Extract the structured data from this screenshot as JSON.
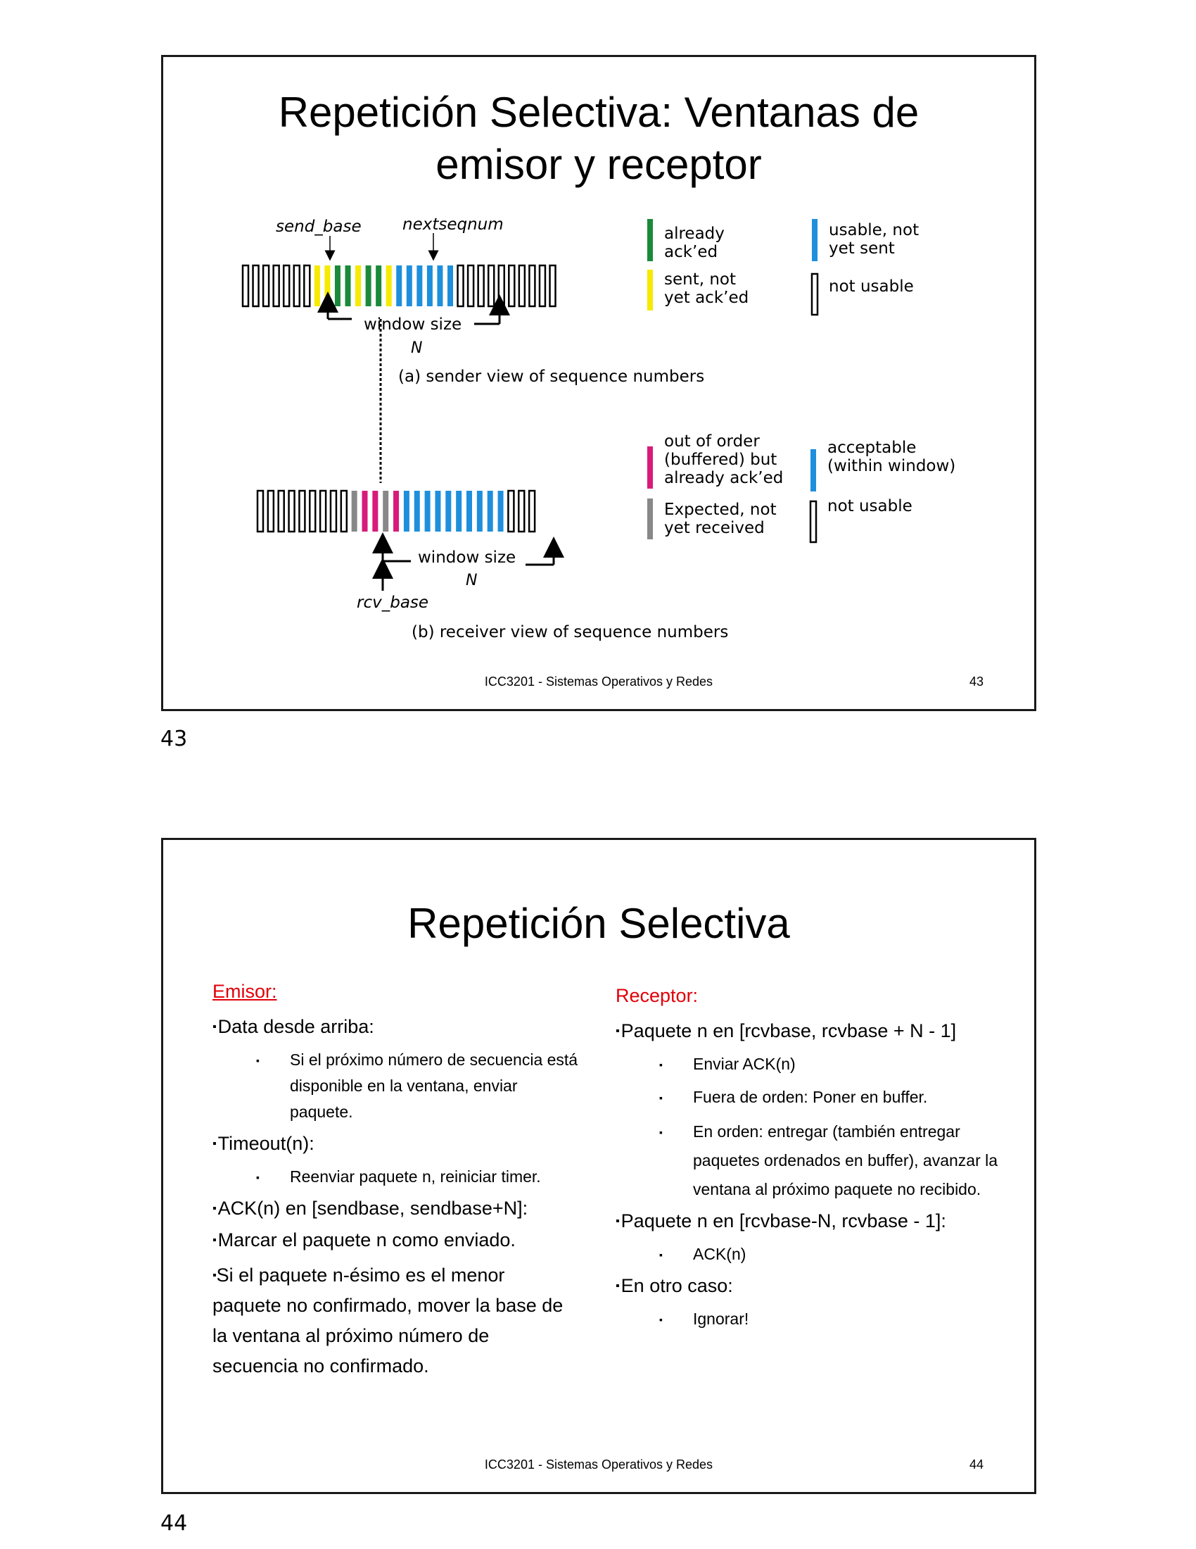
{
  "slide43": {
    "title_line1": "Repetición Selectiva: Ventanas de",
    "title_line2": "emisor y receptor",
    "sender": {
      "send_base": "send_base",
      "nextseqnum": "nextseqnum",
      "window_size": "window size",
      "n": "N",
      "caption": "(a) sender view of sequence numbers",
      "legend": [
        {
          "color": "#1a8a3a",
          "line1": "already",
          "line2": "ack’ed"
        },
        {
          "color": "#f5ea00",
          "line1": "sent, not",
          "line2": "yet ack’ed"
        },
        {
          "color": "#1e8fdc",
          "line1": "usable, not",
          "line2": "yet sent"
        },
        {
          "color": "#ffffff",
          "line1": "not usable",
          "line2": ""
        }
      ],
      "boxes": [
        "none",
        "none",
        "none",
        "none",
        "none",
        "none",
        "none",
        "yellow",
        "yellow",
        "green",
        "green",
        "yellow",
        "green",
        "green",
        "yellow",
        "blue",
        "blue",
        "blue",
        "blue",
        "blue",
        "blue",
        "none",
        "none",
        "none",
        "none",
        "none",
        "none",
        "none",
        "none",
        "none",
        "none"
      ]
    },
    "receiver": {
      "window_size": "window size",
      "n": "N",
      "rcv_base": "rcv_base",
      "caption": "(b) receiver view of sequence numbers",
      "legend": [
        {
          "color": "#d81b7a",
          "line1": "out of order",
          "line2": "(buffered) but",
          "line3": "already ack’ed"
        },
        {
          "color": "#888888",
          "line1": "Expected,  not",
          "line2": "yet received"
        },
        {
          "color": "#1e8fdc",
          "line1": "acceptable",
          "line2": "(within window)"
        },
        {
          "color": "#ffffff",
          "line1": "not usable"
        }
      ],
      "boxes": [
        "none",
        "none",
        "none",
        "none",
        "none",
        "none",
        "none",
        "none",
        "none",
        "gray",
        "pink",
        "pink",
        "gray",
        "pink",
        "blue",
        "blue",
        "blue",
        "blue",
        "blue",
        "blue",
        "blue",
        "blue",
        "blue",
        "blue",
        "none",
        "none",
        "none"
      ]
    },
    "footer": "ICC3201 - Sistemas Operativos y Redes",
    "number": "43",
    "page_number": "43"
  },
  "slide44": {
    "title": "Repetición Selectiva",
    "emisor": {
      "head": "Emisor:",
      "b1": "Data desde arriba:",
      "b1a": "Si el próximo número de secuencia está disponible en la ventana, enviar paquete.",
      "b2": "Timeout(n):",
      "b2a": "Reenviar paquete n, reiniciar timer.",
      "b3": "ACK(n) en [sendbase, sendbase+N]:",
      "b4": "Marcar el paquete n como enviado.",
      "b5": "Si el paquete n-ésimo es el menor paquete no confirmado, mover la base de la ventana al próximo número de secuencia no confirmado."
    },
    "receptor": {
      "head": "Receptor:",
      "b1": "Paquete n en [rcvbase, rcvbase + N  - 1]",
      "b1a": "Enviar ACK(n)",
      "b1b": "Fuera de orden: Poner en buffer.",
      "b1c": "En orden: entregar (también entregar paquetes ordenados en buffer), avanzar la ventana al próximo paquete no recibido.",
      "b2": "Paquete n en [rcvbase-N, rcvbase - 1]:",
      "b2a": "ACK(n)",
      "b3": "En otro caso:",
      "b3a": "Ignorar!"
    },
    "footer": "ICC3201 - Sistemas Operativos y Redes",
    "number": "44",
    "page_number": "44"
  },
  "bullet_glyph": "▪"
}
